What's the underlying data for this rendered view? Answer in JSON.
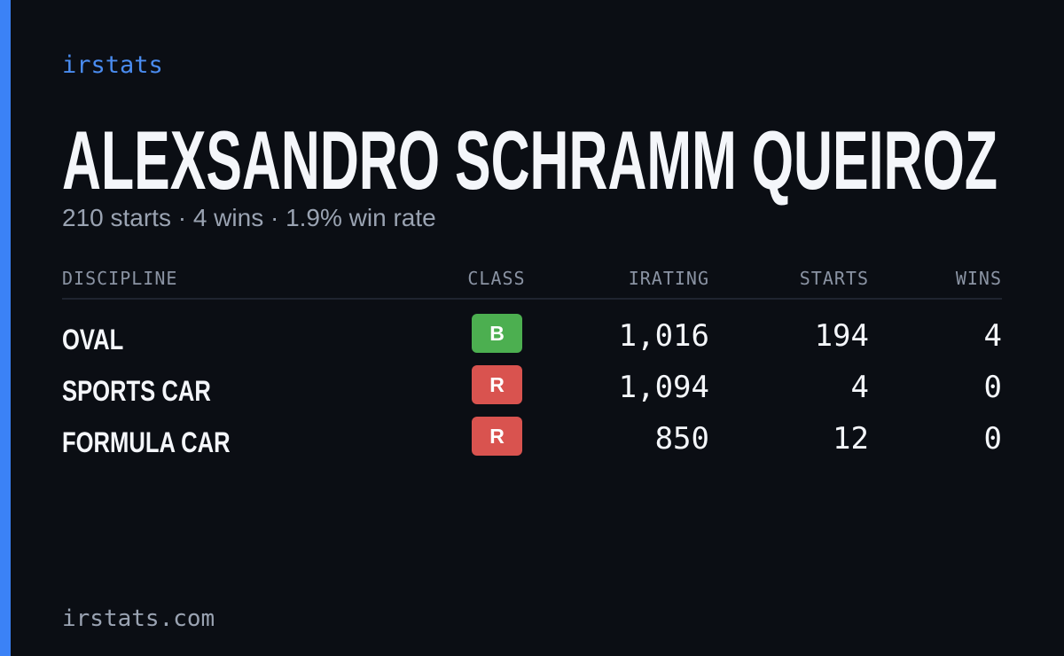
{
  "brand": "irstats",
  "player": {
    "name": "ALEXSANDRO SCHRAMM QUEIROZ",
    "summary": "210 starts · 4 wins · 1.9% win rate"
  },
  "table": {
    "columns": [
      "DISCIPLINE",
      "CLASS",
      "IRATING",
      "STARTS",
      "WINS"
    ],
    "rows": [
      {
        "discipline": "OVAL",
        "class": "B",
        "class_color": "#4caf50",
        "irating": "1,016",
        "starts": "194",
        "wins": "4"
      },
      {
        "discipline": "SPORTS CAR",
        "class": "R",
        "class_color": "#d9534f",
        "irating": "1,094",
        "starts": "4",
        "wins": "0"
      },
      {
        "discipline": "FORMULA CAR",
        "class": "R",
        "class_color": "#d9534f",
        "irating": "850",
        "starts": "12",
        "wins": "0"
      }
    ]
  },
  "footer": "irstats.com"
}
